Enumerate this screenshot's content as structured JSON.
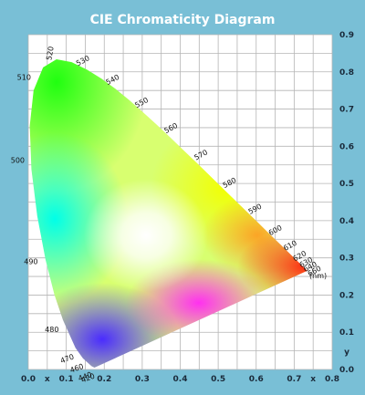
{
  "chart_data": {
    "type": "scatter",
    "title": "CIE Chromaticity Diagram",
    "x_axis": {
      "ticks": [
        "0.0",
        "0.1",
        "0.2",
        "0.3",
        "0.4",
        "0.5",
        "0.6",
        "0.7",
        "0.8"
      ],
      "label": "x",
      "range": [
        0.0,
        0.8
      ]
    },
    "y_axis": {
      "ticks": [
        "0.0",
        "0.1",
        "0.2",
        "0.3",
        "0.4",
        "0.5",
        "0.6",
        "0.7",
        "0.8",
        "0.9"
      ],
      "label": "y",
      "range": [
        0.0,
        0.9
      ],
      "position": "right"
    },
    "grid": true,
    "wavelength_unit": "(nm)",
    "wavelength_labels": [
      {
        "text": "420",
        "x": 0.171,
        "y": 0.005
      },
      {
        "text": "440",
        "x": 0.164,
        "y": 0.009
      },
      {
        "text": "460",
        "x": 0.144,
        "y": 0.03
      },
      {
        "text": "470",
        "x": 0.124,
        "y": 0.058
      },
      {
        "text": "480",
        "x": 0.091,
        "y": 0.133
      },
      {
        "text": "490",
        "x": 0.045,
        "y": 0.295
      },
      {
        "text": "500",
        "x": 0.008,
        "y": 0.538
      },
      {
        "text": "510",
        "x": 0.014,
        "y": 0.75
      },
      {
        "text": "520",
        "x": 0.074,
        "y": 0.834
      },
      {
        "text": "530",
        "x": 0.155,
        "y": 0.806
      },
      {
        "text": "540",
        "x": 0.23,
        "y": 0.754
      },
      {
        "text": "550",
        "x": 0.302,
        "y": 0.692
      },
      {
        "text": "560",
        "x": 0.373,
        "y": 0.624
      },
      {
        "text": "570",
        "x": 0.444,
        "y": 0.555
      },
      {
        "text": "580",
        "x": 0.512,
        "y": 0.487
      },
      {
        "text": "590",
        "x": 0.575,
        "y": 0.424
      },
      {
        "text": "600",
        "x": 0.627,
        "y": 0.372
      },
      {
        "text": "610",
        "x": 0.666,
        "y": 0.334
      },
      {
        "text": "620",
        "x": 0.691,
        "y": 0.308
      },
      {
        "text": "630",
        "x": 0.708,
        "y": 0.292
      },
      {
        "text": "640",
        "x": 0.719,
        "y": 0.281
      },
      {
        "text": "660",
        "x": 0.73,
        "y": 0.27
      }
    ],
    "spectral_locus": [
      [
        0.1741,
        0.005
      ],
      [
        0.1666,
        0.0089
      ],
      [
        0.144,
        0.0297
      ],
      [
        0.1241,
        0.0578
      ],
      [
        0.0913,
        0.1327
      ],
      [
        0.0687,
        0.2007
      ],
      [
        0.0454,
        0.295
      ],
      [
        0.0235,
        0.4127
      ],
      [
        0.0082,
        0.5384
      ],
      [
        0.0039,
        0.6548
      ],
      [
        0.0139,
        0.7502
      ],
      [
        0.0389,
        0.812
      ],
      [
        0.0743,
        0.8338
      ],
      [
        0.1142,
        0.8262
      ],
      [
        0.1547,
        0.8059
      ],
      [
        0.1929,
        0.7816
      ],
      [
        0.2296,
        0.7543
      ],
      [
        0.2658,
        0.7243
      ],
      [
        0.3016,
        0.6923
      ],
      [
        0.3373,
        0.6589
      ],
      [
        0.3731,
        0.6245
      ],
      [
        0.4087,
        0.5896
      ],
      [
        0.4441,
        0.5547
      ],
      [
        0.4788,
        0.5202
      ],
      [
        0.5125,
        0.4866
      ],
      [
        0.5448,
        0.4544
      ],
      [
        0.5752,
        0.4242
      ],
      [
        0.6029,
        0.3965
      ],
      [
        0.627,
        0.3725
      ],
      [
        0.6482,
        0.3514
      ],
      [
        0.6658,
        0.334
      ],
      [
        0.6801,
        0.3197
      ],
      [
        0.6915,
        0.3083
      ],
      [
        0.7006,
        0.2993
      ],
      [
        0.7079,
        0.292
      ],
      [
        0.714,
        0.2859
      ],
      [
        0.719,
        0.2809
      ],
      [
        0.723,
        0.277
      ],
      [
        0.726,
        0.274
      ],
      [
        0.7283,
        0.2717
      ],
      [
        0.73,
        0.27
      ],
      [
        0.7347,
        0.2653
      ]
    ],
    "colors": {
      "frame": "#79bfd6",
      "plot_background": "#ffffff",
      "grid": "#b5b5b5",
      "title": "#ffffff",
      "tick_text": "#1a2a3a",
      "label_text": "#111111"
    }
  }
}
